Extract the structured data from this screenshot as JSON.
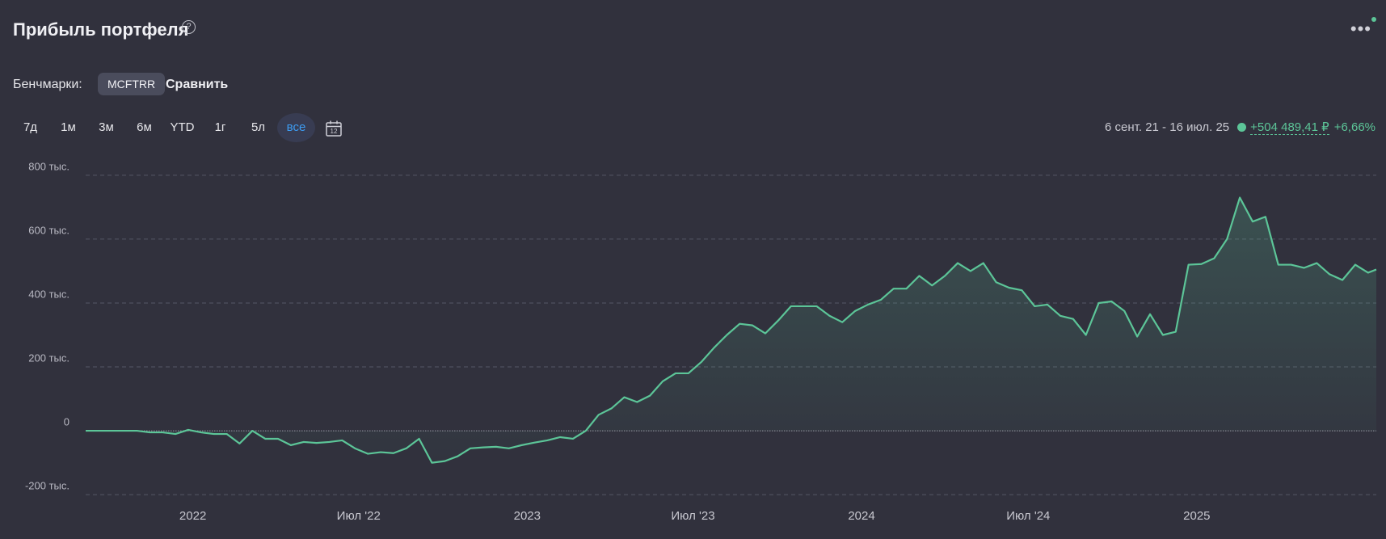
{
  "chart_data": {
    "type": "line",
    "title": "Прибыль портфеля",
    "color": "#5cc598",
    "x": [
      "2021-09-06",
      "2021-09-20",
      "2021-10-04",
      "2021-10-18",
      "2021-11-01",
      "2021-11-15",
      "2021-11-29",
      "2021-12-13",
      "2021-12-27",
      "2022-01-10",
      "2022-01-24",
      "2022-02-07",
      "2022-02-21",
      "2022-03-07",
      "2022-03-21",
      "2022-04-04",
      "2022-04-18",
      "2022-05-02",
      "2022-05-16",
      "2022-05-30",
      "2022-06-13",
      "2022-06-27",
      "2022-07-11",
      "2022-07-25",
      "2022-08-08",
      "2022-08-22",
      "2022-09-05",
      "2022-09-19",
      "2022-10-03",
      "2022-10-17",
      "2022-10-31",
      "2022-11-14",
      "2022-11-28",
      "2022-12-12",
      "2022-12-26",
      "2023-01-09",
      "2023-01-23",
      "2023-02-06",
      "2023-02-20",
      "2023-03-06",
      "2023-03-20",
      "2023-04-03",
      "2023-04-17",
      "2023-05-01",
      "2023-05-15",
      "2023-05-29",
      "2023-06-12",
      "2023-06-26",
      "2023-07-10",
      "2023-07-24",
      "2023-08-07",
      "2023-08-21",
      "2023-09-04",
      "2023-09-18",
      "2023-10-02",
      "2023-10-16",
      "2023-10-30",
      "2023-11-13",
      "2023-11-27",
      "2023-12-11",
      "2023-12-25",
      "2024-01-08",
      "2024-01-22",
      "2024-02-05",
      "2024-02-19",
      "2024-03-04",
      "2024-03-18",
      "2024-04-01",
      "2024-04-15",
      "2024-04-29",
      "2024-05-13",
      "2024-05-27",
      "2024-06-10",
      "2024-06-24",
      "2024-07-08",
      "2024-07-22",
      "2024-08-05",
      "2024-08-19",
      "2024-09-02",
      "2024-09-16",
      "2024-09-30",
      "2024-10-14",
      "2024-10-28",
      "2024-11-11",
      "2024-11-25",
      "2024-12-09",
      "2024-12-23",
      "2025-01-06",
      "2025-01-20",
      "2025-02-03",
      "2025-02-17",
      "2025-03-03",
      "2025-03-17",
      "2025-03-31",
      "2025-04-14",
      "2025-04-28",
      "2025-05-12",
      "2025-05-26",
      "2025-06-09",
      "2025-06-23",
      "2025-07-07",
      "2025-07-16"
    ],
    "values": [
      0,
      0,
      0,
      0,
      0,
      -5000,
      -5000,
      -10000,
      3000,
      -5000,
      -10000,
      -10000,
      -40000,
      0,
      -25000,
      -25000,
      -45000,
      -35000,
      -38000,
      -35000,
      -30000,
      -55000,
      -72000,
      -67000,
      -70000,
      -55000,
      -25000,
      -100000,
      -95000,
      -80000,
      -55000,
      -52000,
      -50000,
      -55000,
      -45000,
      -37000,
      -30000,
      -20000,
      -25000,
      0,
      50000,
      70000,
      105000,
      90000,
      110000,
      155000,
      180000,
      180000,
      215000,
      260000,
      300000,
      335000,
      330000,
      305000,
      345000,
      390000,
      390000,
      390000,
      360000,
      340000,
      375000,
      395000,
      410000,
      445000,
      445000,
      485000,
      455000,
      485000,
      525000,
      500000,
      525000,
      465000,
      448000,
      440000,
      390000,
      395000,
      360000,
      350000,
      300000,
      400000,
      405000,
      375000,
      295000,
      365000,
      300000,
      310000,
      520000,
      522000,
      540000,
      600000,
      730000,
      655000,
      670000,
      520000,
      520000,
      510000,
      525000,
      490000,
      472000,
      520000,
      495000,
      505000
    ],
    "xlim": [
      "2021-09-06",
      "2025-07-16"
    ],
    "xticks": [
      {
        "value": "2022-01-01",
        "label": "2022"
      },
      {
        "value": "2022-07-01",
        "label": "Июл '22"
      },
      {
        "value": "2023-01-01",
        "label": "2023"
      },
      {
        "value": "2023-07-01",
        "label": "Июл '23"
      },
      {
        "value": "2024-01-01",
        "label": "2024"
      },
      {
        "value": "2024-07-01",
        "label": "Июл '24"
      },
      {
        "value": "2025-01-01",
        "label": "2025"
      }
    ],
    "ylim": [
      -230000,
      830000
    ],
    "yticks": [
      {
        "value": -200000,
        "label": "-200 тыс."
      },
      0,
      {
        "value": 200000,
        "label": "200 тыс."
      },
      {
        "value": 400000,
        "label": "400 тыс."
      },
      {
        "value": 600000,
        "label": "600 тыс."
      },
      {
        "value": 800000,
        "label": "800 тыс."
      }
    ],
    "grid": true
  },
  "ui": {
    "help": "?",
    "benchmarks_label": "Бенчмарки:",
    "benchmark": "MCFTRR",
    "compare": "Сравнить",
    "periods": [
      "7д",
      "1м",
      "3м",
      "6м",
      "YTD",
      "1г",
      "5л",
      "все"
    ],
    "active_period": 7,
    "calendar_day": "12",
    "range": "6 сент. 21 - 16 июл. 25",
    "change_abs": "+504 489,41 ₽",
    "change_pct": "+6,66%"
  }
}
